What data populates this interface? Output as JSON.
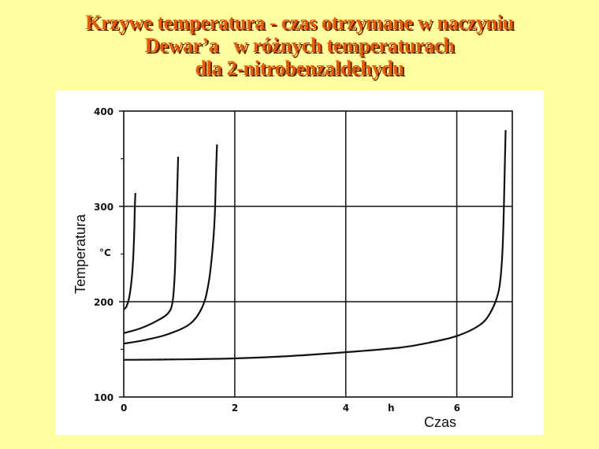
{
  "title_lines": [
    "Krzywe temperatura - czas otrzymane w naczyniu",
    "Dewar’a   w różnych temperaturach",
    "dla 2-nitrobenzaldehydu"
  ],
  "colors": {
    "background": "#ffffa0",
    "title": "#e85a0c",
    "title_shadow": "#5a2a00",
    "line": "#111111"
  },
  "chart_data": {
    "type": "line",
    "xlabel": "Czas",
    "x_unit": "h",
    "ylabel": "Temperatura",
    "y_unit": "°C",
    "xlim": [
      0,
      7
    ],
    "ylim": [
      100,
      400
    ],
    "x_ticks": [
      "0",
      "2",
      "4",
      "6"
    ],
    "y_ticks": [
      "100",
      "200",
      "300",
      "400"
    ],
    "grid": true,
    "series": [
      {
        "x": [
          0,
          0.05,
          0.1,
          0.14,
          0.17,
          0.19,
          0.2,
          0.21
        ],
        "y": [
          192,
          195,
          205,
          222,
          245,
          275,
          300,
          314
        ]
      },
      {
        "x": [
          0,
          0.3,
          0.6,
          0.8,
          0.88,
          0.92,
          0.94,
          0.96,
          0.98
        ],
        "y": [
          167,
          172,
          180,
          188,
          200,
          230,
          270,
          310,
          352
        ]
      },
      {
        "x": [
          0,
          0.4,
          0.8,
          1.2,
          1.42,
          1.53,
          1.6,
          1.64,
          1.66,
          1.68
        ],
        "y": [
          156,
          160,
          166,
          177,
          195,
          220,
          255,
          290,
          330,
          365
        ]
      },
      {
        "x": [
          0,
          1,
          2,
          3,
          4,
          5,
          5.5,
          6,
          6.4,
          6.6,
          6.75,
          6.81,
          6.84,
          6.86,
          6.88
        ],
        "y": [
          139,
          139.5,
          140.5,
          143,
          147,
          152,
          157,
          164,
          175,
          188,
          210,
          240,
          280,
          330,
          380
        ]
      }
    ]
  }
}
